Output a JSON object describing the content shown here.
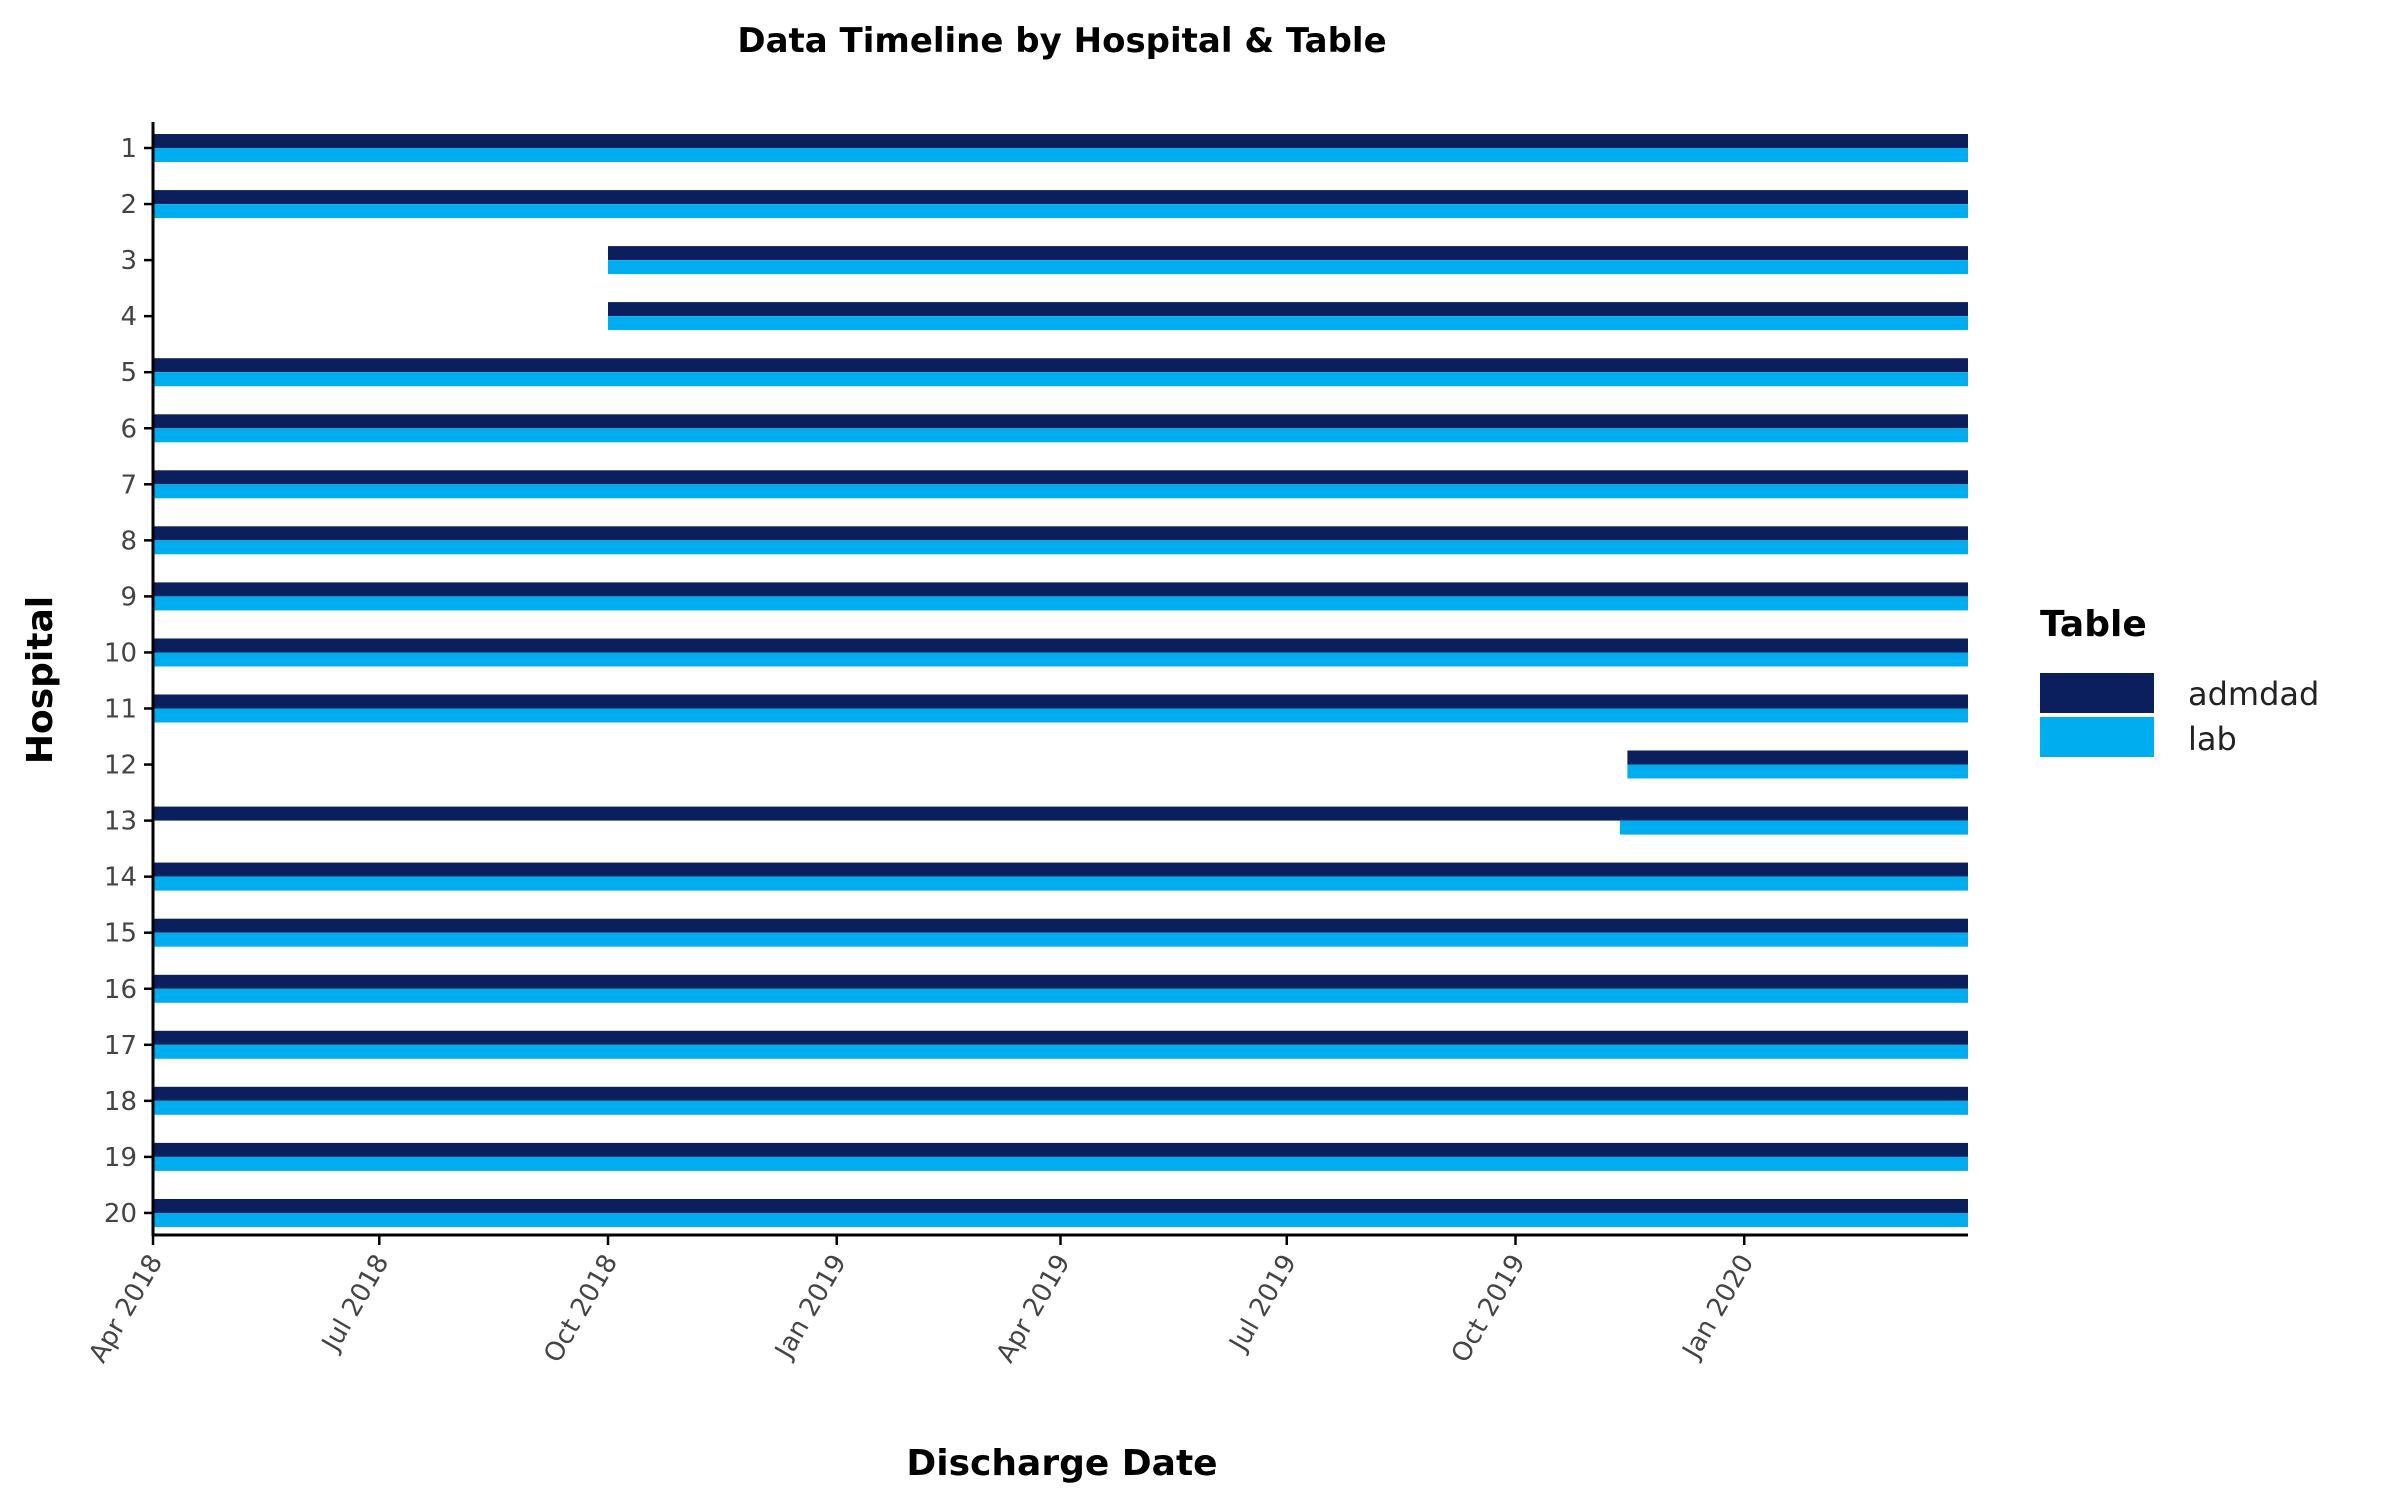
{
  "chart_data": {
    "type": "bar",
    "orientation": "horizontal-timeline",
    "title": "Data Timeline by Hospital & Table",
    "xlabel": "Discharge Date",
    "ylabel": "Hospital",
    "xlim": [
      "2018-04-01",
      "2020-03-31"
    ],
    "x_ticks": [
      "2018-04-01",
      "2018-07-01",
      "2018-10-01",
      "2019-01-01",
      "2019-04-01",
      "2019-07-01",
      "2019-10-01",
      "2020-01-01"
    ],
    "x_tick_labels": [
      "Apr 2018",
      "Jul 2018",
      "Oct 2018",
      "Jan 2019",
      "Apr 2019",
      "Jul 2019",
      "Oct 2019",
      "Jan 2020"
    ],
    "categories": [
      "1",
      "2",
      "3",
      "4",
      "5",
      "6",
      "7",
      "8",
      "9",
      "10",
      "11",
      "12",
      "13",
      "14",
      "15",
      "16",
      "17",
      "18",
      "19",
      "20"
    ],
    "legend": {
      "title": "Table",
      "position": "right"
    },
    "grid": false,
    "series": [
      {
        "name": "admdad",
        "color": "#0a1f5c",
        "ranges": [
          [
            "2018-04-01",
            "2020-03-31"
          ],
          [
            "2018-04-01",
            "2020-03-31"
          ],
          [
            "2018-10-01",
            "2020-03-31"
          ],
          [
            "2018-10-01",
            "2020-03-31"
          ],
          [
            "2018-04-01",
            "2020-03-31"
          ],
          [
            "2018-04-01",
            "2020-03-31"
          ],
          [
            "2018-04-01",
            "2020-03-31"
          ],
          [
            "2018-04-01",
            "2020-03-31"
          ],
          [
            "2018-04-01",
            "2020-03-31"
          ],
          [
            "2018-04-01",
            "2020-03-31"
          ],
          [
            "2018-04-01",
            "2020-03-31"
          ],
          [
            "2019-11-15",
            "2020-03-31"
          ],
          [
            "2018-04-01",
            "2020-03-31"
          ],
          [
            "2018-04-01",
            "2020-03-31"
          ],
          [
            "2018-04-01",
            "2020-03-31"
          ],
          [
            "2018-04-01",
            "2020-03-31"
          ],
          [
            "2018-04-01",
            "2020-03-31"
          ],
          [
            "2018-04-01",
            "2020-03-31"
          ],
          [
            "2018-04-01",
            "2020-03-31"
          ],
          [
            "2018-04-01",
            "2020-03-31"
          ]
        ]
      },
      {
        "name": "lab",
        "color": "#00aeef",
        "ranges": [
          [
            "2018-04-01",
            "2020-03-31"
          ],
          [
            "2018-04-01",
            "2020-03-31"
          ],
          [
            "2018-10-01",
            "2020-03-31"
          ],
          [
            "2018-10-01",
            "2020-03-31"
          ],
          [
            "2018-04-01",
            "2020-03-31"
          ],
          [
            "2018-04-01",
            "2020-03-31"
          ],
          [
            "2018-04-01",
            "2020-03-31"
          ],
          [
            "2018-04-01",
            "2020-03-31"
          ],
          [
            "2018-04-01",
            "2020-03-31"
          ],
          [
            "2018-04-01",
            "2020-03-31"
          ],
          [
            "2018-04-01",
            "2020-03-31"
          ],
          [
            "2019-11-15",
            "2020-03-31"
          ],
          [
            "2019-11-12",
            "2020-03-31"
          ],
          [
            "2018-04-01",
            "2020-03-31"
          ],
          [
            "2018-04-01",
            "2020-03-31"
          ],
          [
            "2018-04-01",
            "2020-03-31"
          ],
          [
            "2018-04-01",
            "2020-03-31"
          ],
          [
            "2018-04-01",
            "2020-03-31"
          ],
          [
            "2018-04-01",
            "2020-03-31"
          ],
          [
            "2018-04-01",
            "2020-03-31"
          ]
        ]
      }
    ]
  }
}
